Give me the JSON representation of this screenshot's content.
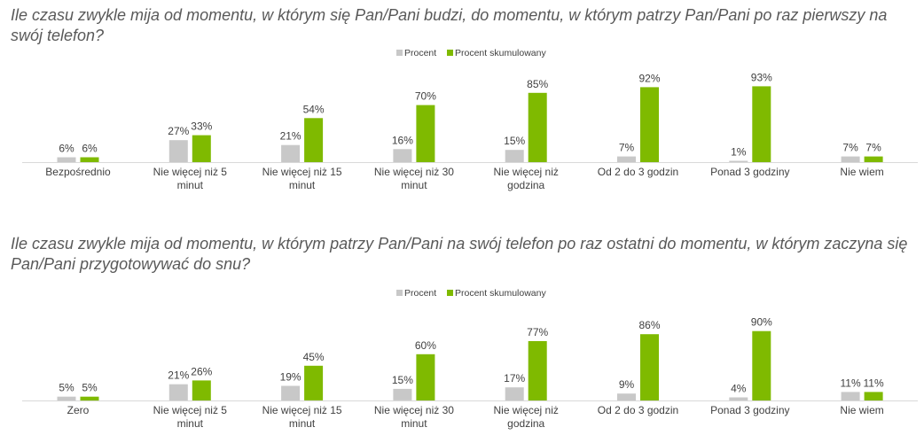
{
  "chart_data": [
    {
      "type": "bar",
      "title": "Ile czasu zwykle mija od momentu, w którym się Pan/Pani budzi, do momentu, w którym patrzy Pan/Pani po raz pierwszy na swój telefon?",
      "categories": [
        "Bezpośrednio",
        "Nie więcej niż 5 minut",
        "Nie więcej niż 15 minut",
        "Nie więcej niż 30 minut",
        "Nie więcej niż godzina",
        "Od 2 do 3 godzin",
        "Ponad 3 godziny",
        "Nie wiem"
      ],
      "series": [
        {
          "name": "Procent",
          "color": "#c8c8c8",
          "values": [
            6,
            27,
            21,
            16,
            15,
            7,
            1,
            7
          ],
          "labels": [
            "6%",
            "27%",
            "21%",
            "16%",
            "15%",
            "7%",
            "1%",
            "7%"
          ]
        },
        {
          "name": "Procent skumulowany",
          "color": "#7fba00",
          "values": [
            6,
            33,
            54,
            70,
            85,
            92,
            93,
            7
          ],
          "labels": [
            "6%",
            "33%",
            "54%",
            "70%",
            "85%",
            "92%",
            "93%",
            "7%"
          ]
        }
      ],
      "ylim": [
        0,
        100
      ],
      "legend": "top-center",
      "grid": false
    },
    {
      "type": "bar",
      "title": "Ile czasu zwykle mija od momentu, w którym patrzy Pan/Pani na swój telefon po raz ostatni do momentu, w którym zaczyna się Pan/Pani przygotowywać do snu?",
      "categories": [
        "Zero",
        "Nie więcej niż 5 minut",
        "Nie więcej niż 15 minut",
        "Nie więcej niż 30 minut",
        "Nie więcej niż godzina",
        "Od 2 do 3 godzin",
        "Ponad 3 godziny",
        "Nie wiem"
      ],
      "series": [
        {
          "name": "Procent",
          "color": "#c8c8c8",
          "values": [
            5,
            21,
            19,
            15,
            17,
            9,
            4,
            11
          ],
          "labels": [
            "5%",
            "21%",
            "19%",
            "15%",
            "17%",
            "9%",
            "4%",
            "11%"
          ]
        },
        {
          "name": "Procent skumulowany",
          "color": "#7fba00",
          "values": [
            5,
            26,
            45,
            60,
            77,
            86,
            90,
            11
          ],
          "labels": [
            "5%",
            "26%",
            "45%",
            "60%",
            "77%",
            "86%",
            "90%",
            "11%"
          ]
        }
      ],
      "ylim": [
        0,
        100
      ],
      "legend": "top-center",
      "grid": false
    }
  ]
}
